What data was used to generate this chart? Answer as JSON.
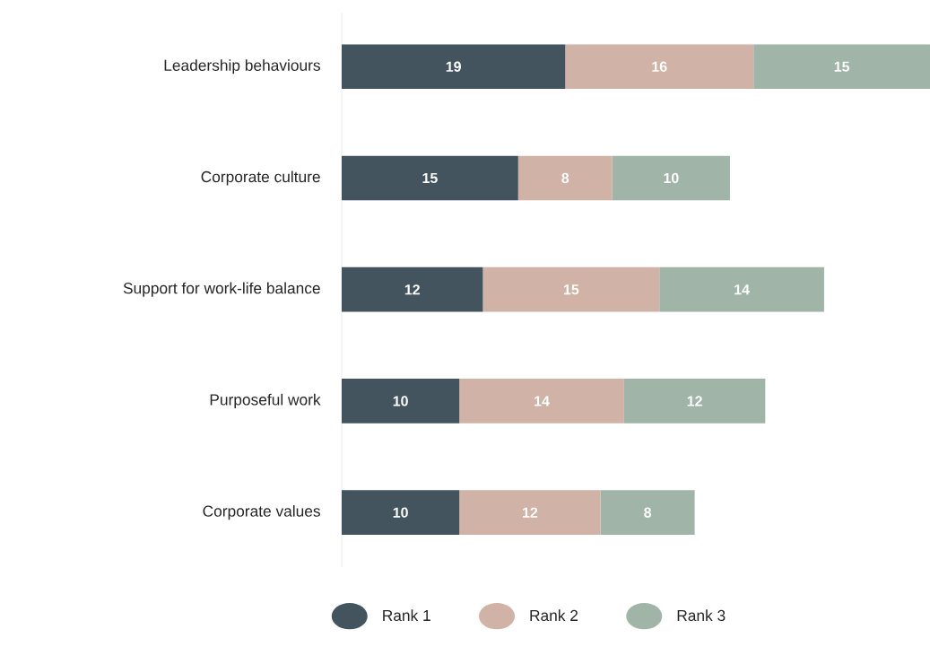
{
  "chart_data": {
    "type": "bar",
    "orientation": "horizontal",
    "stacked": true,
    "data_labels": true,
    "legend": "bottom",
    "categories": [
      "Leadership behaviours",
      "Corporate culture",
      "Support for work-life balance",
      "Purposeful work",
      "Corporate values"
    ],
    "series": [
      {
        "name": "Rank 1",
        "color": "#44545f",
        "values": [
          19,
          15,
          12,
          10,
          10
        ]
      },
      {
        "name": "Rank 2",
        "color": "#d1b2a6",
        "values": [
          16,
          8,
          15,
          14,
          12
        ]
      },
      {
        "name": "Rank 3",
        "color": "#a0b4a8",
        "values": [
          15,
          10,
          14,
          12,
          8
        ]
      }
    ]
  }
}
